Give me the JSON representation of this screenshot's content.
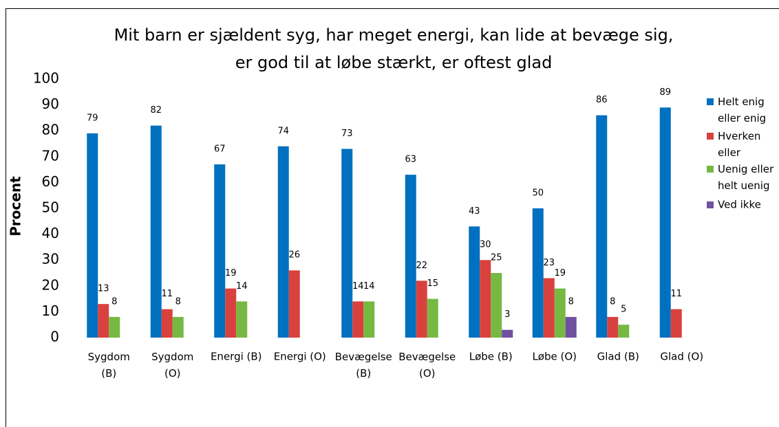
{
  "chart_data": {
    "type": "bar",
    "title": "Mit barn er sjældent syg, har meget energi, kan lide at bevæge sig,\ner god til at løbe stærkt, er oftest glad",
    "ylabel": "Procent",
    "categories": [
      "Sygdom\n(B)",
      "Sygdom\n(O)",
      "Energi (B)",
      "Energi (O)",
      "Bevægelse\n(B)",
      "Bevægelse\n(O)",
      "Løbe (B)",
      "Løbe (O)",
      "Glad (B)",
      "Glad (O)"
    ],
    "series": [
      {
        "name": "Helt enig\neller enig",
        "color": "#0070c0",
        "values": [
          79,
          82,
          67,
          74,
          73,
          63,
          43,
          50,
          86,
          89
        ]
      },
      {
        "name": "Hverken\neller",
        "color": "#d9413e",
        "values": [
          13,
          11,
          19,
          26,
          14,
          22,
          30,
          23,
          8,
          11
        ]
      },
      {
        "name": "Uenig eller\nhelt uenig",
        "color": "#77b843",
        "values": [
          8,
          8,
          14,
          null,
          14,
          15,
          25,
          19,
          5,
          null
        ]
      },
      {
        "name": "Ved ikke",
        "color": "#7051a0",
        "values": [
          null,
          null,
          null,
          null,
          null,
          null,
          3,
          8,
          null,
          null
        ]
      }
    ],
    "ylim": [
      0,
      100
    ],
    "yticks": [
      0,
      10,
      20,
      30,
      40,
      50,
      60,
      70,
      80,
      90,
      100
    ],
    "legend": "right"
  }
}
